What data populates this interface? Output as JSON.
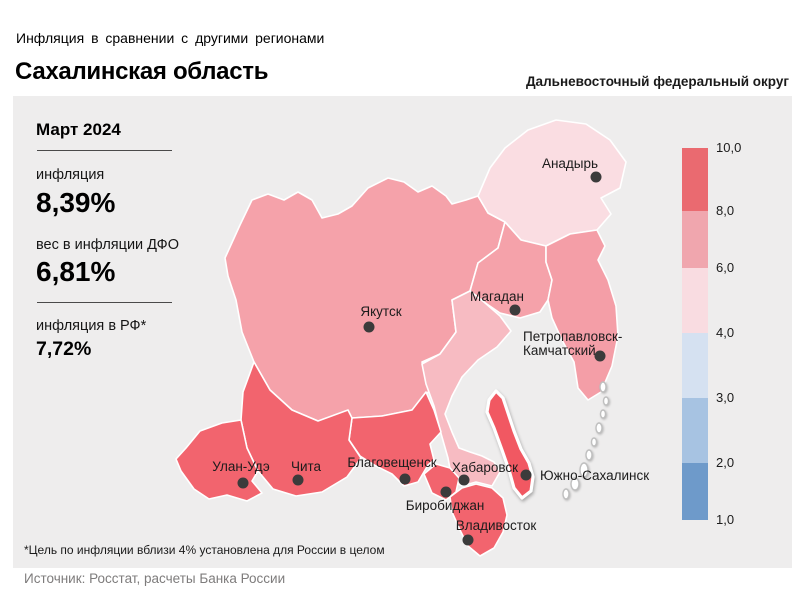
{
  "header": {
    "kicker": "Инфляция  в сравнении  с другими  регионами",
    "title": "Сахалинская область",
    "district": "Дальневосточный федеральный округ"
  },
  "stats": {
    "month": "Март 2024",
    "inflation_label": "инфляция",
    "inflation_value": "8,39%",
    "weight_label": "вес в инфляции  ДФО",
    "weight_value": "6,81%",
    "rf_label": "инфляция  в РФ*",
    "rf_value": "7,72%"
  },
  "legend": {
    "ticks": [
      "10,0",
      "8,0",
      "6,0",
      "4,0",
      "3,0",
      "2,0",
      "1,0"
    ],
    "boundaries": [
      148,
      211,
      268,
      333,
      398,
      463,
      520
    ],
    "colors": [
      "#EA6A70",
      "#F0A6AE",
      "#F9DCE1",
      "#D5E1F1",
      "#A7C3E2",
      "#6E9ACA"
    ]
  },
  "map": {
    "region_colors": {
      "chukotka": "#FADDE2",
      "yakutia": "#F5A2AA",
      "magadan": "#F5A2AA",
      "kamchatka": "#F49EA7",
      "khabarovsk": "#F7BBC2",
      "amur": "#F2646E",
      "zabaykalsky": "#F2646E",
      "buryatia": "#F2646E",
      "jewish": "#F2646E",
      "primorsky": "#F2646E",
      "sakhalin": "#F15862"
    },
    "cities": [
      {
        "lines": [
          "Анадырь"
        ],
        "dot": [
          596,
          177
        ],
        "label": [
          570,
          168
        ],
        "anchor": "middle"
      },
      {
        "lines": [
          "Якутск"
        ],
        "dot": [
          369,
          327
        ],
        "label": [
          381,
          316
        ],
        "anchor": "middle"
      },
      {
        "lines": [
          "Магадан"
        ],
        "dot": [
          515,
          310
        ],
        "label": [
          497,
          301
        ],
        "anchor": "middle"
      },
      {
        "lines": [
          "Петропавловск-",
          "Камчатский"
        ],
        "dot": [
          600,
          356
        ],
        "label": [
          523,
          341
        ],
        "anchor": "start"
      },
      {
        "lines": [
          "Улан-Удэ"
        ],
        "dot": [
          243,
          483
        ],
        "label": [
          241,
          471
        ],
        "anchor": "middle"
      },
      {
        "lines": [
          "Чита"
        ],
        "dot": [
          298,
          480
        ],
        "label": [
          306,
          471
        ],
        "anchor": "middle"
      },
      {
        "lines": [
          "Благовещенск"
        ],
        "dot": [
          405,
          479
        ],
        "label": [
          392,
          467
        ],
        "anchor": "middle"
      },
      {
        "lines": [
          "Хабаровск"
        ],
        "dot": [
          464,
          480
        ],
        "label": [
          485,
          472
        ],
        "anchor": "middle"
      },
      {
        "lines": [
          "Южно-Сахалинск"
        ],
        "dot": [
          526,
          475
        ],
        "label": [
          540,
          480
        ],
        "anchor": "start"
      },
      {
        "lines": [
          "Биробиджан"
        ],
        "dot": [
          446,
          492
        ],
        "label": [
          445,
          510
        ],
        "anchor": "middle"
      },
      {
        "lines": [
          "Владивосток"
        ],
        "dot": [
          468,
          540
        ],
        "label": [
          496,
          530
        ],
        "anchor": "middle"
      }
    ]
  },
  "footnote": "*Цель по инфляции вблизи 4% установлена для России в  целом",
  "source": "Источник: Росстат, расчеты  Банка  России",
  "chart_data": {
    "type": "choropleth-map",
    "title": "Инфляция в сравнении с другими регионами — Сахалинская область",
    "subtitle": "Дальневосточный федеральный округ",
    "period": "Март 2024",
    "values": {
      "инфляция (Сахалинская область), %": 8.39,
      "вес в инфляции ДФО, %": 6.81,
      "инфляция в РФ, %": 7.72
    },
    "color_scale_ticks": [
      10.0,
      8.0,
      6.0,
      4.0,
      3.0,
      2.0,
      1.0
    ],
    "units": "%",
    "legend_position": "right"
  }
}
